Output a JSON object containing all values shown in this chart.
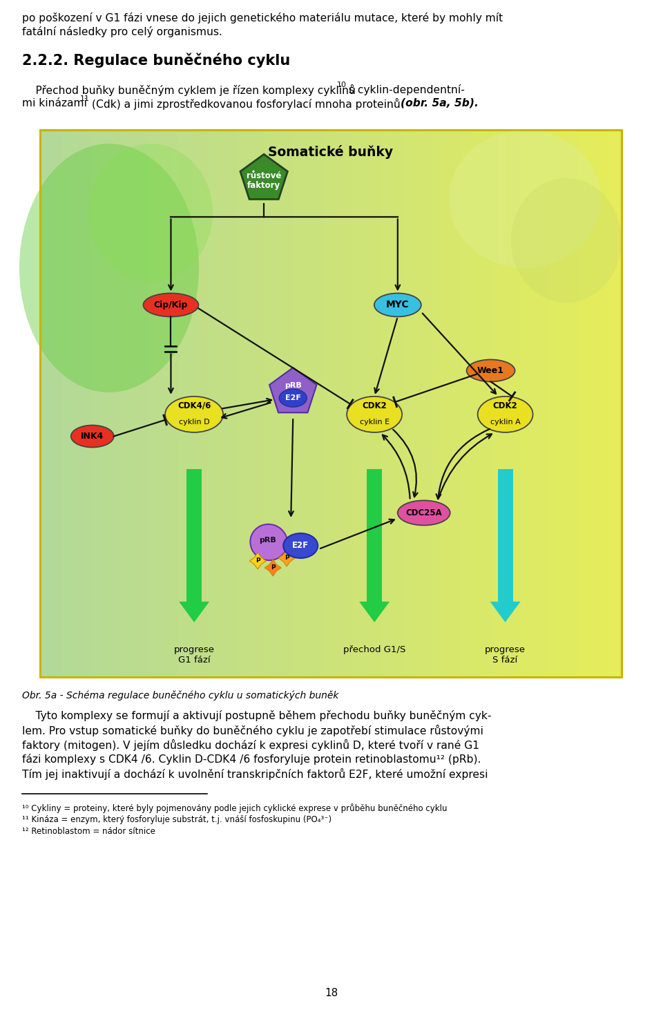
{
  "page_bg": "#ffffff",
  "top_text_line1": "po poškození v G1 fázi vnese do jejich genetického materiálu mutace, které by mohly mít",
  "top_text_line2": "fatální následky pro celý organismus.",
  "section_title": "2.2.2. Regulace buněčného cyklu",
  "caption": "Obr. 5a - Schéma regulace buněčného cyklu u somatických buněk",
  "body_lines": [
    "    Tyto komplexy se formují a aktivují postupně během přechodu buňky buněčným cyk-",
    "lem. Pro vstup somatické buňky do buněčného cyklu je zapotřebí stimulace růstovými",
    "faktory (mitogen). V jejím důsledku dochází k expresi cyklinů D, které tvoří v rané G1",
    "fázi komplexy s CDK4 /6. Cyklin D-CDK4 /6 fosforyluje protein retinoblastomu¹² (pRb).",
    "Tím jej inaktivují a dochází k uvolnění transkripčních faktorů E2F, které umožní expresi"
  ],
  "footnotes": [
    "¹⁰ Cykliny = proteiny, které byly pojmenovány podle jejich cyklické exprese v průběhu buněčného cyklu",
    "¹¹ Kináza = enzym, který fosforyluje substrát, t.j. vnáší fosfoskupinu (PO₄³⁻)",
    "¹² Retinoblastom = nádor sítnice"
  ],
  "page_number": "18",
  "diag_border": "#c8b400",
  "green_arrow_color": "#22cc44",
  "teal_arrow_color": "#22cccc"
}
